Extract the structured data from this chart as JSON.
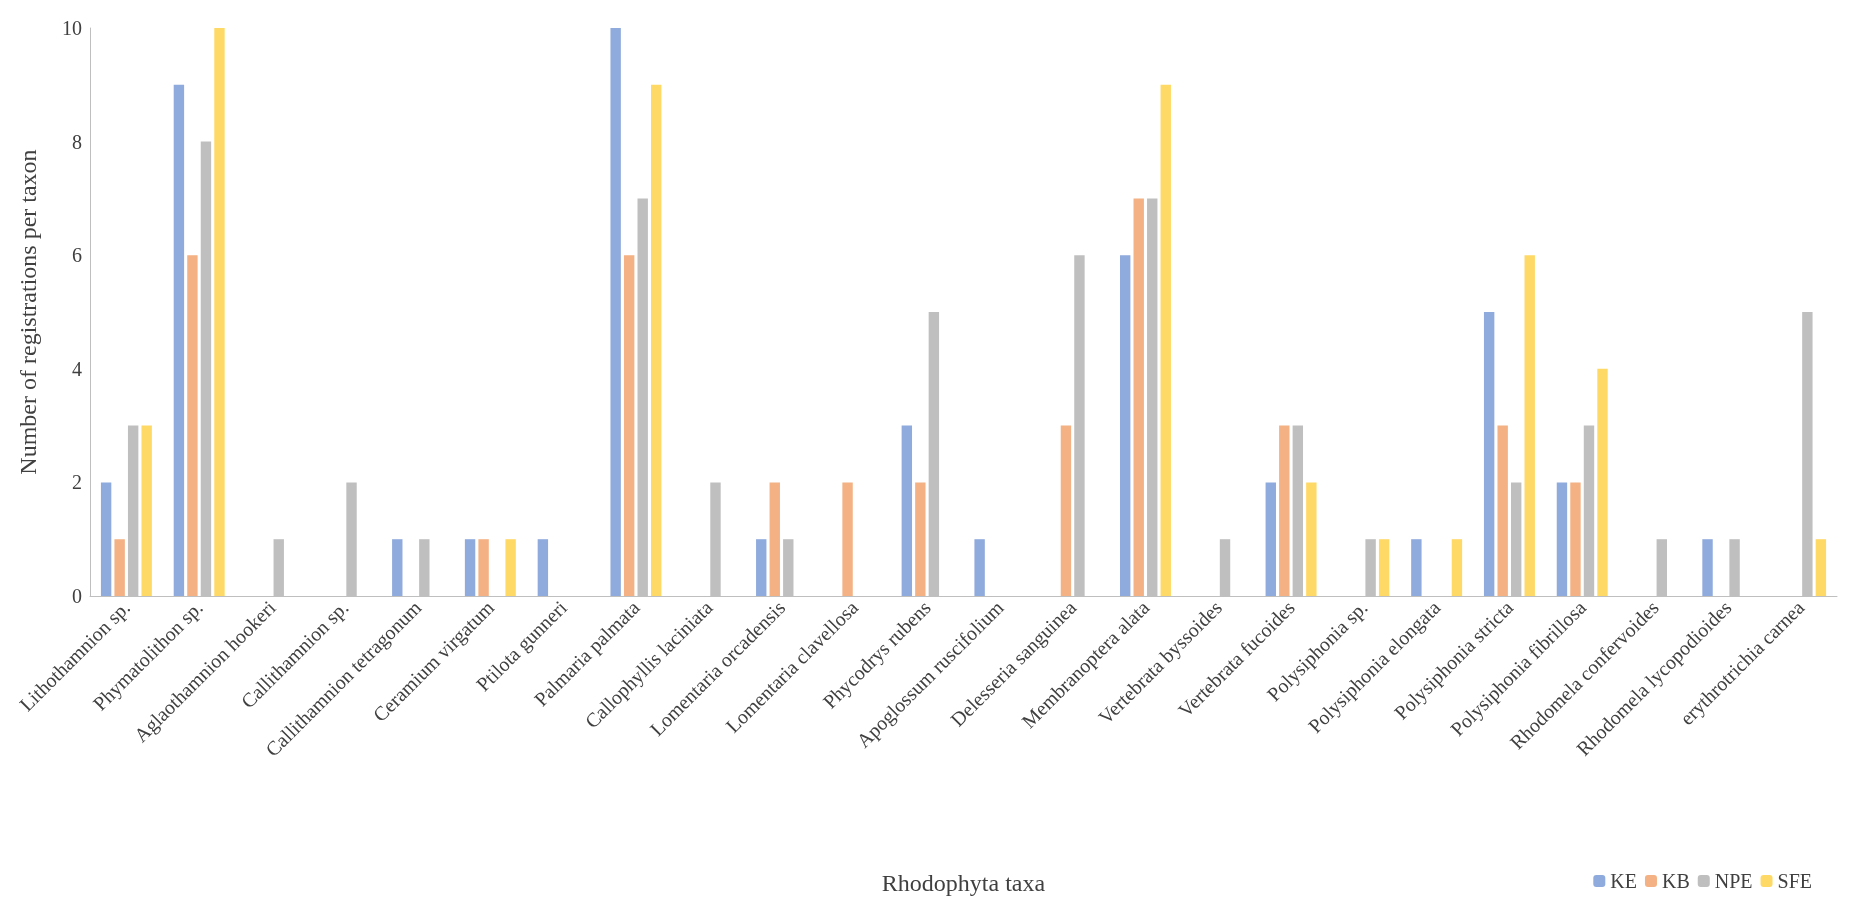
{
  "chart_data": {
    "type": "bar",
    "xlabel": "Rhodophyta taxa",
    "ylabel": "Number of registrations per taxon",
    "categories": [
      "Lithothamnion sp.",
      "Phymatolithon sp.",
      "Aglaothamnion hookeri",
      "Callithamnion sp.",
      "Callithamnion tetragonum",
      "Ceramium virgatum",
      "Ptilota gunneri",
      "Palmaria palmata",
      "Callophyllis laciniata",
      "Lomentaria orcadensis",
      "Lomentaria clavellosa",
      "Phycodrys rubens",
      "Apoglossum ruscifolium",
      "Delesseria sanguinea",
      "Membranoptera alata",
      "Vertebrata byssoides",
      "Vertebrata fucoides",
      "Polysiphonia sp.",
      "Polysiphonia elongata",
      "Polysiphonia stricta",
      "Polysiphonia fibrillosa",
      "Rhodomela confervoides",
      "Rhodomela lycopodioides",
      "erythrotrichia carnea"
    ],
    "series": [
      {
        "name": "KE",
        "color": "#8faadc",
        "values": [
          2,
          9,
          0,
          0,
          1,
          1,
          1,
          10,
          0,
          1,
          0,
          3,
          1,
          0,
          6,
          0,
          2,
          0,
          1,
          5,
          2,
          0,
          1,
          0
        ]
      },
      {
        "name": "KB",
        "color": "#f4b183",
        "values": [
          1,
          6,
          0,
          0,
          0,
          1,
          0,
          6,
          0,
          2,
          2,
          2,
          0,
          3,
          7,
          0,
          3,
          0,
          0,
          3,
          2,
          0,
          0,
          0
        ]
      },
      {
        "name": "NPE",
        "color": "#bfbfbf",
        "values": [
          3,
          8,
          1,
          2,
          1,
          0,
          0,
          7,
          2,
          1,
          0,
          5,
          0,
          6,
          7,
          1,
          3,
          1,
          0,
          2,
          3,
          1,
          1,
          5
        ]
      },
      {
        "name": "SFE",
        "color": "#ffd966",
        "values": [
          3,
          10,
          0,
          0,
          0,
          1,
          0,
          9,
          0,
          0,
          0,
          0,
          0,
          0,
          9,
          0,
          2,
          1,
          1,
          6,
          4,
          0,
          0,
          1
        ]
      }
    ],
    "ylim": [
      0,
      10
    ],
    "yticks": [
      0,
      2,
      4,
      6,
      8,
      10
    ],
    "grid": false,
    "legend": "bottom right"
  }
}
